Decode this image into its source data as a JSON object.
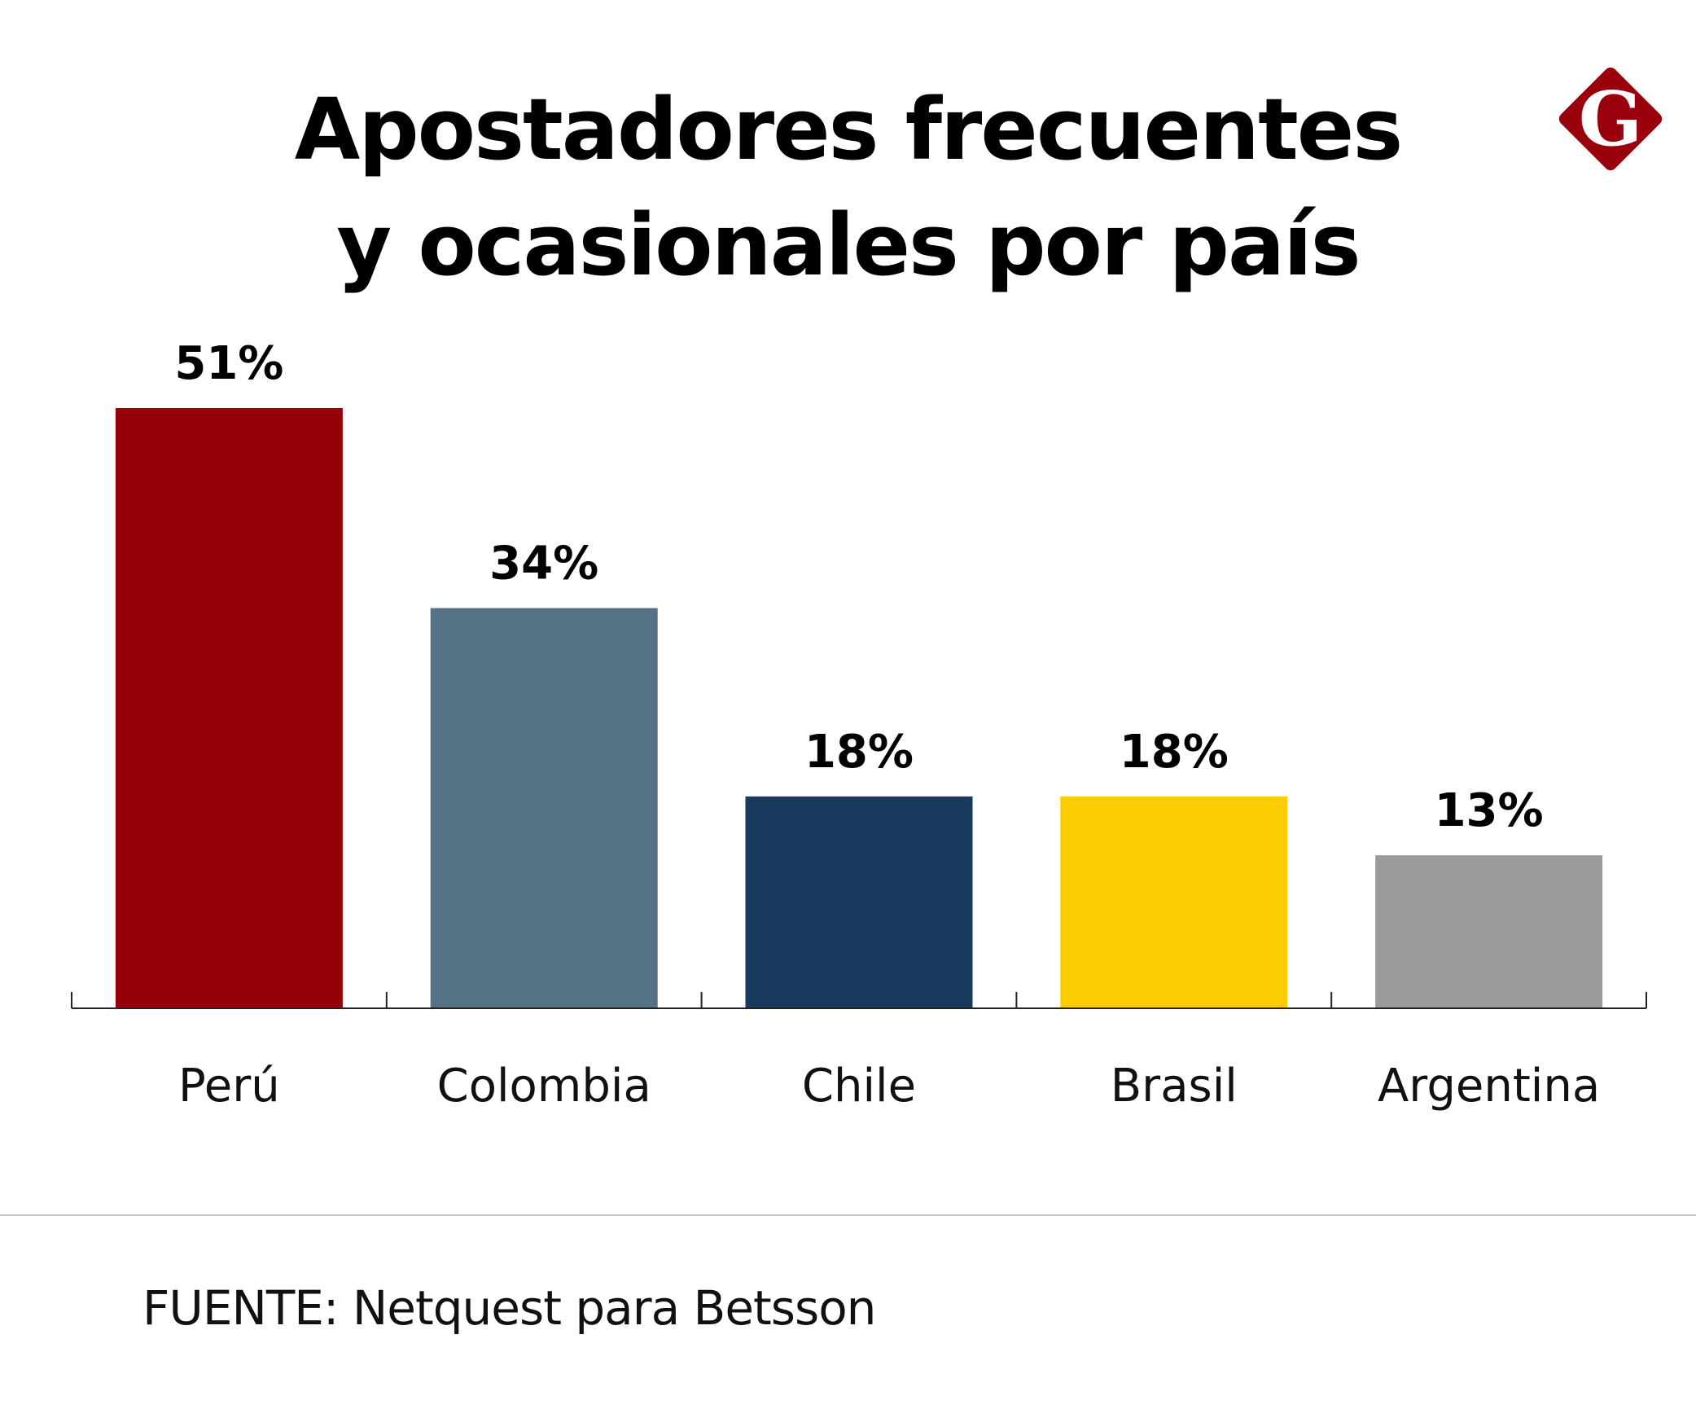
{
  "title_lines": [
    "Apostadores frecuentes",
    "y ocasionales por país"
  ],
  "logo": {
    "icon": "gestion-g-diamond-logo",
    "letter": "G",
    "color": "#99000c"
  },
  "source": "FUENTE: Netquest para Betsson",
  "chart_data": {
    "type": "bar",
    "title": "Apostadores frecuentes y ocasionales por país",
    "categories": [
      "Perú",
      "Colombia",
      "Chile",
      "Brasil",
      "Argentina"
    ],
    "values": [
      51,
      34,
      18,
      18,
      13
    ],
    "value_labels": [
      "51%",
      "34%",
      "18%",
      "18%",
      "13%"
    ],
    "unit": "%",
    "colors": [
      "#960008",
      "#557186",
      "#183a5c",
      "#fccd00",
      "#9b9b9b"
    ],
    "xlabel": "",
    "ylabel": "",
    "ylim": [
      0,
      51
    ],
    "grid": false,
    "legend": "none"
  }
}
